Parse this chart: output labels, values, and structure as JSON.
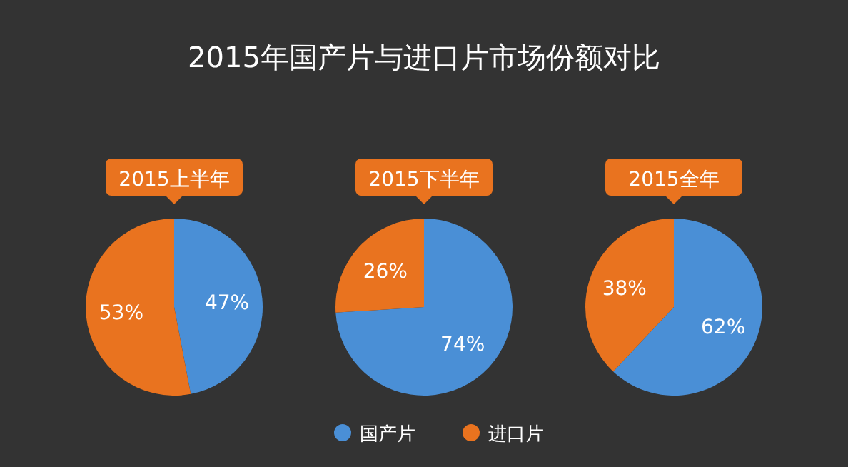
{
  "chart_data": [
    {
      "type": "pie",
      "title": "2015上半年",
      "annotations": [
        "2015年国产片与进口片市场份额对比"
      ],
      "categories": [
        "国产片",
        "进口片"
      ],
      "values": [
        47,
        53
      ],
      "colors": [
        "#4a8fd6",
        "#e9731f"
      ],
      "value_labels": [
        "47%",
        "53%"
      ],
      "legend": "bottom"
    },
    {
      "type": "pie",
      "title": "2015下半年",
      "categories": [
        null,
        null
      ],
      "values": [
        74,
        26
      ],
      "colors": [
        "#4a8fd6",
        "#e9731f"
      ],
      "value_labels": [
        "74%",
        "26%"
      ]
    },
    {
      "type": "pie",
      "title": "2015全年",
      "categories": [
        null,
        null
      ],
      "values": [
        62,
        38
      ],
      "colors": [
        "#4a8fd6",
        "#e9731f"
      ],
      "value_labels": [
        "62%",
        "38%"
      ]
    }
  ]
}
